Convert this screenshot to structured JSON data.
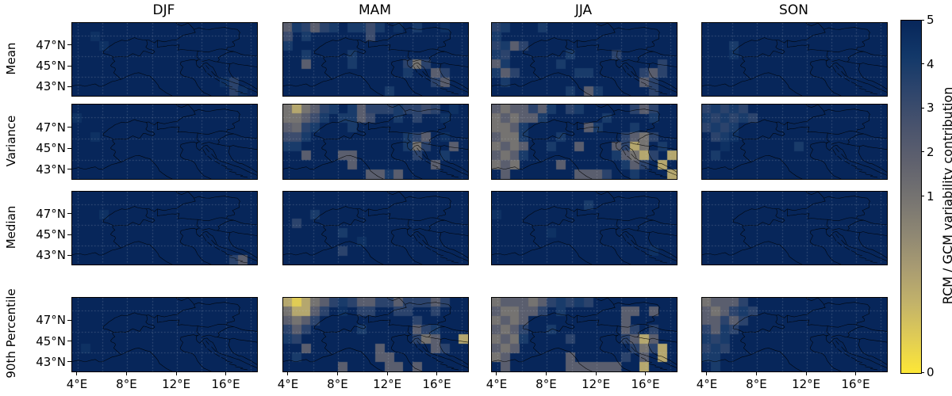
{
  "chart_data": {
    "type": "heatmap",
    "title": "",
    "columns": [
      "DJF",
      "MAM",
      "JJA",
      "SON"
    ],
    "rows": [
      "Mean",
      "Variance",
      "Median",
      "90th Percentile"
    ],
    "x_tick_labels": [
      "4°E",
      "8°E",
      "12°E",
      "16°E"
    ],
    "y_tick_labels": [
      "47°N",
      "45°N",
      "43°N"
    ],
    "lon_ticks": [
      4,
      8,
      12,
      16
    ],
    "lat_ticks": [
      47,
      45,
      43
    ],
    "colorbar": {
      "label": "RCM / GCM variability contribution",
      "tick_labels": [
        "5",
        "4",
        "3",
        "2",
        "1",
        "0"
      ],
      "tick_values": [
        5,
        4,
        3,
        2,
        1,
        0
      ],
      "vmin": 0,
      "vmax": 5,
      "vcenter": 1,
      "colormap": "cividis_r",
      "colormap_stops": [
        "#07265a",
        "#123869",
        "#2e456c",
        "#49536d",
        "#5f616e",
        "#757371",
        "#8d8673",
        "#a89b72",
        "#c2b26a",
        "#e0cc55",
        "#fde737"
      ]
    },
    "value_key": {
      ".": 5,
      "a": 4.5,
      "4": 4,
      "b": 3.5,
      "3": 3,
      "c": 2.5,
      "2": 2,
      "d": 1.5,
      "1": 1,
      "e": 0.5,
      "0": 0.2
    },
    "panels": [
      {
        "row": "Mean",
        "season": "DJF",
        "grid": [
          "....................",
          "..a.................",
          "...a................",
          "....................",
          "....................",
          "....................",
          "................ab..",
          ".................ba."
        ]
      },
      {
        "row": "Mean",
        "season": "MAM",
        "grid": [
          "24b2b4.4434.a.4..a..",
          "3.4......3..........",
          "4...................",
          "..4....4............",
          "..2....4.....b1b....",
          ".............4..2b..",
          "................b2..",
          "...........4........"
        ]
      },
      {
        "row": "Mean",
        "season": "JJA",
        "grid": [
          "b4...4..............",
          "4...................",
          "b42b................",
          "4b......4....b......",
          "24.....4..........b.",
          "42b......44.....b2b.",
          ".4..............2b..",
          "........4.24.....b.."
        ]
      },
      {
        "row": "Mean",
        "season": "SON",
        "grid": [
          "....................",
          "....................",
          "...4................",
          "...a................",
          "....................",
          "....................",
          "....................",
          "...................."
        ]
      },
      {
        "row": "Variance",
        "season": "DJF",
        "grid": [
          "....................",
          "a...................",
          "....................",
          "..a.................",
          "....................",
          "....................",
          "....................",
          "...................."
        ]
      },
      {
        "row": "Variance",
        "season": "MAM",
        "grid": [
          "1e12b4.42bbb4bb3b.a.",
          "11234.4423..4.b..a..",
          "2db4...4............",
          "334..........4b2.a..",
          "44...........41b..2.",
          "..2...22......b..4..",
          ".......2........2...",
          ".........2242......."
        ]
      },
      {
        "row": "Variance",
        "season": "JJA",
        "grid": [
          "2122b24.b4.....b2b..",
          "121224......4....4..",
          "1124......24...4....",
          "2114...4......b21b..",
          "1212..4..2...2be1.4.",
          "2124.........421eb.e",
          "121....2......42b.e.",
          ".2.......222b..4...e"
        ]
      },
      {
        "row": "Variance",
        "season": "SON",
        "grid": [
          "b4b4b...............",
          "4b4b4b..............",
          "b4b4................",
          ".b4a................",
          "..a.......4.........",
          ".4..................",
          "....................",
          "...................."
        ]
      },
      {
        "row": "Median",
        "season": "DJF",
        "grid": [
          "....................",
          "....................",
          "...a................",
          "....................",
          "....................",
          "....................",
          "....................",
          ".................b2."
        ]
      },
      {
        "row": "Median",
        "season": "MAM",
        "grid": [
          "....................",
          "....................",
          "...4................",
          ".b..................",
          "......4.............",
          "........a...........",
          "......b.............",
          "...................."
        ]
      },
      {
        "row": "Median",
        "season": "JJA",
        "grid": [
          "....................",
          "..........4.........",
          "a...................",
          "....................",
          "......a.............",
          "....................",
          ".................a..",
          "...................."
        ]
      },
      {
        "row": "Median",
        "season": "SON",
        "grid": [
          "....................",
          "....................",
          "....................",
          "....................",
          "....................",
          "....................",
          "....................",
          "...................."
        ]
      },
      {
        "row": "90th Percentile",
        "season": "DJF",
        "grid": [
          "....................",
          "....................",
          "....................",
          "....................",
          "....................",
          ".a..................",
          "....................",
          "...................."
        ]
      },
      {
        "row": "90th Percentile",
        "season": "MAM",
        "grid": [
          "e0e12b4b22bb2bbb2b..",
          "1ee2b.a.bb..bb..b...",
          "212b..........b.....",
          "b2b.....4.....2b4...",
          "4b............b12..e",
          "..2.......2.....2b..",
          ".4........22........",
          "......2....22.2....."
        ]
      },
      {
        "row": "90th Percentile",
        "season": "JJA",
        "grid": [
          "122212b4b4b.........",
          "21122b.4......22.2..",
          "1212..........2.....",
          "212b..4.......2b.b..",
          "1214....b.....b2e2..",
          "212............b1be.",
          "12......2.....b.2.e.",
          ".2......222222..e..."
        ]
      },
      {
        "row": "90th Percentile",
        "season": "SON",
        "grid": [
          "1222b...............",
          "212b4b..............",
          "22b2b...............",
          "b24b................",
          "4b4.................",
          "b4b.................",
          "44..................",
          ".4.................."
        ]
      }
    ]
  }
}
